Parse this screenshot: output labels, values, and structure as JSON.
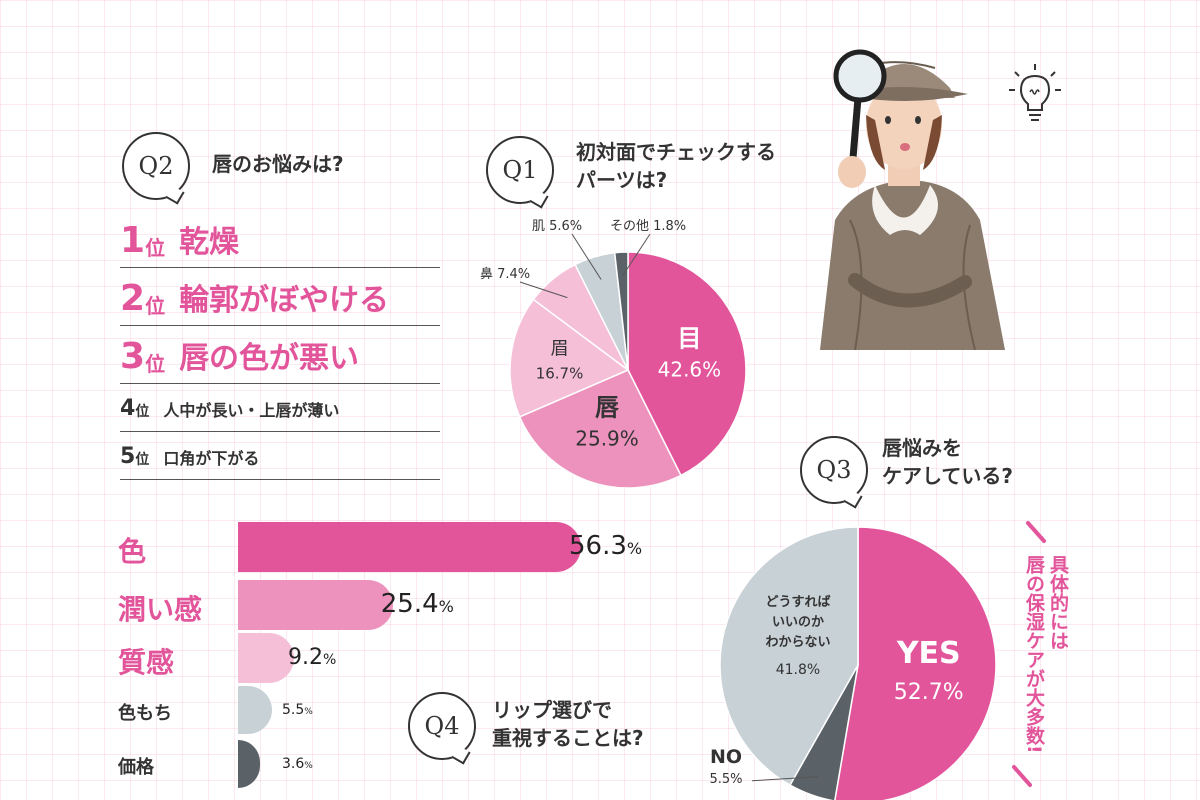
{
  "q1": {
    "badge": "Q1",
    "title_line1": "初対面でチェックする",
    "title_line2": "パーツは?"
  },
  "q2": {
    "badge": "Q2",
    "title": "唇のお悩みは?",
    "rankings": [
      {
        "num": "1",
        "pos": "位",
        "text": "乾燥"
      },
      {
        "num": "2",
        "pos": "位",
        "text": "輪郭がぼやける"
      },
      {
        "num": "3",
        "pos": "位",
        "text": "唇の色が悪い"
      },
      {
        "num": "4",
        "pos": "位",
        "text": "人中が長い・上唇が薄い"
      },
      {
        "num": "5",
        "pos": "位",
        "text": "口角が下がる"
      }
    ]
  },
  "q3": {
    "badge": "Q3",
    "title_line1": "唇悩みを",
    "title_line2": "ケアしている?",
    "side_note_line1": "具体的には",
    "side_note_line2": "唇の保湿ケアが大多数!"
  },
  "q4": {
    "badge": "Q4",
    "title_line1": "リップ選びで",
    "title_line2": "重視することは?"
  },
  "colors": {
    "pink_strong": "#e2559b",
    "pink_mid": "#ec92bd",
    "pink_light": "#f5bfd8",
    "gray_light": "#c8d1d6",
    "gray_dark": "#5a6268"
  },
  "chart_data": [
    {
      "type": "pie",
      "labels": [
        "目",
        "唇",
        "眉",
        "鼻",
        "肌",
        "その他"
      ],
      "values": [
        42.6,
        25.9,
        16.7,
        7.4,
        5.6,
        1.8
      ],
      "display": [
        "42.6",
        "25.9",
        "16.7",
        "7.4",
        "5.6",
        "1.8"
      ],
      "unit": "%"
    },
    {
      "type": "pie",
      "labels": [
        "YES",
        "NO",
        "どうすれば いいのか わからない"
      ],
      "label_lines": [
        [
          "YES"
        ],
        [
          "NO"
        ],
        [
          "どうすれば",
          "いいのか",
          "わからない"
        ]
      ],
      "values": [
        52.7,
        5.5,
        41.8
      ],
      "display": [
        "52.7",
        "5.5",
        "41.8"
      ],
      "unit": "%"
    },
    {
      "type": "bar",
      "orientation": "horizontal",
      "categories": [
        "色",
        "潤い感",
        "質感",
        "色もち",
        "価格"
      ],
      "values": [
        56.3,
        25.4,
        9.2,
        5.5,
        3.6
      ],
      "display": [
        "56.3",
        "25.4",
        "9.2",
        "5.5",
        "3.6"
      ],
      "unit": "%"
    }
  ]
}
